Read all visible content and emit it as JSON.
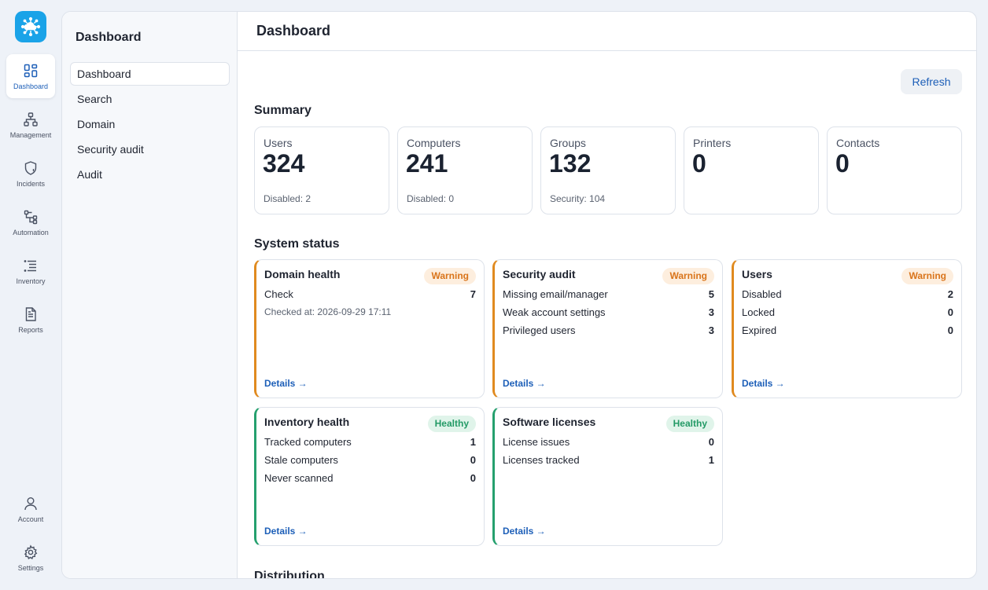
{
  "rail": {
    "items": [
      {
        "label": "Dashboard",
        "icon": "dashboard-icon"
      },
      {
        "label": "Management",
        "icon": "hierarchy-icon"
      },
      {
        "label": "Incidents",
        "icon": "shield-alert-icon"
      },
      {
        "label": "Automation",
        "icon": "workflow-icon"
      },
      {
        "label": "Inventory",
        "icon": "list-icon"
      },
      {
        "label": "Reports",
        "icon": "document-icon"
      }
    ],
    "bottom": [
      {
        "label": "Account",
        "icon": "user-icon"
      },
      {
        "label": "Settings",
        "icon": "gear-icon"
      }
    ]
  },
  "subnav": {
    "title": "Dashboard",
    "items": [
      "Dashboard",
      "Search",
      "Domain",
      "Security audit",
      "Audit"
    ]
  },
  "header": {
    "title": "Dashboard"
  },
  "toolbar": {
    "refresh_label": "Refresh"
  },
  "summary": {
    "title": "Summary",
    "cards": [
      {
        "label": "Users",
        "value": "324",
        "sub": "Disabled: 2"
      },
      {
        "label": "Computers",
        "value": "241",
        "sub": "Disabled: 0"
      },
      {
        "label": "Groups",
        "value": "132",
        "sub": "Security: 104"
      },
      {
        "label": "Printers",
        "value": "0",
        "sub": ""
      },
      {
        "label": "Contacts",
        "value": "0",
        "sub": ""
      }
    ]
  },
  "system_status": {
    "title": "System status",
    "cards": [
      {
        "title": "Domain health",
        "badge": "Warning",
        "rows": [
          {
            "k": "Check",
            "v": "7"
          }
        ],
        "note": "Checked at: 2026-09-29 17:11",
        "details": "Details →"
      },
      {
        "title": "Security audit",
        "badge": "Warning",
        "rows": [
          {
            "k": "Missing email/manager",
            "v": "5"
          },
          {
            "k": "Weak account settings",
            "v": "3"
          },
          {
            "k": "Privileged users",
            "v": "3"
          }
        ],
        "details": "Details →"
      },
      {
        "title": "Users",
        "badge": "Warning",
        "rows": [
          {
            "k": "Disabled",
            "v": "2"
          },
          {
            "k": "Locked",
            "v": "0"
          },
          {
            "k": "Expired",
            "v": "0"
          }
        ],
        "details": "Details →"
      },
      {
        "title": "Inventory health",
        "badge": "Healthy",
        "rows": [
          {
            "k": "Tracked computers",
            "v": "1"
          },
          {
            "k": "Stale computers",
            "v": "0"
          },
          {
            "k": "Never scanned",
            "v": "0"
          }
        ],
        "details": "Details →"
      },
      {
        "title": "Software licenses",
        "badge": "Healthy",
        "rows": [
          {
            "k": "License issues",
            "v": "0"
          },
          {
            "k": "Licenses tracked",
            "v": "1"
          }
        ],
        "details": "Details →"
      }
    ]
  },
  "distribution": {
    "title": "Distribution"
  },
  "colors": {
    "accent": "#1d5fb8",
    "logo": "#1aa3e8",
    "warning": "#e08a1f",
    "healthy": "#25a06e"
  }
}
